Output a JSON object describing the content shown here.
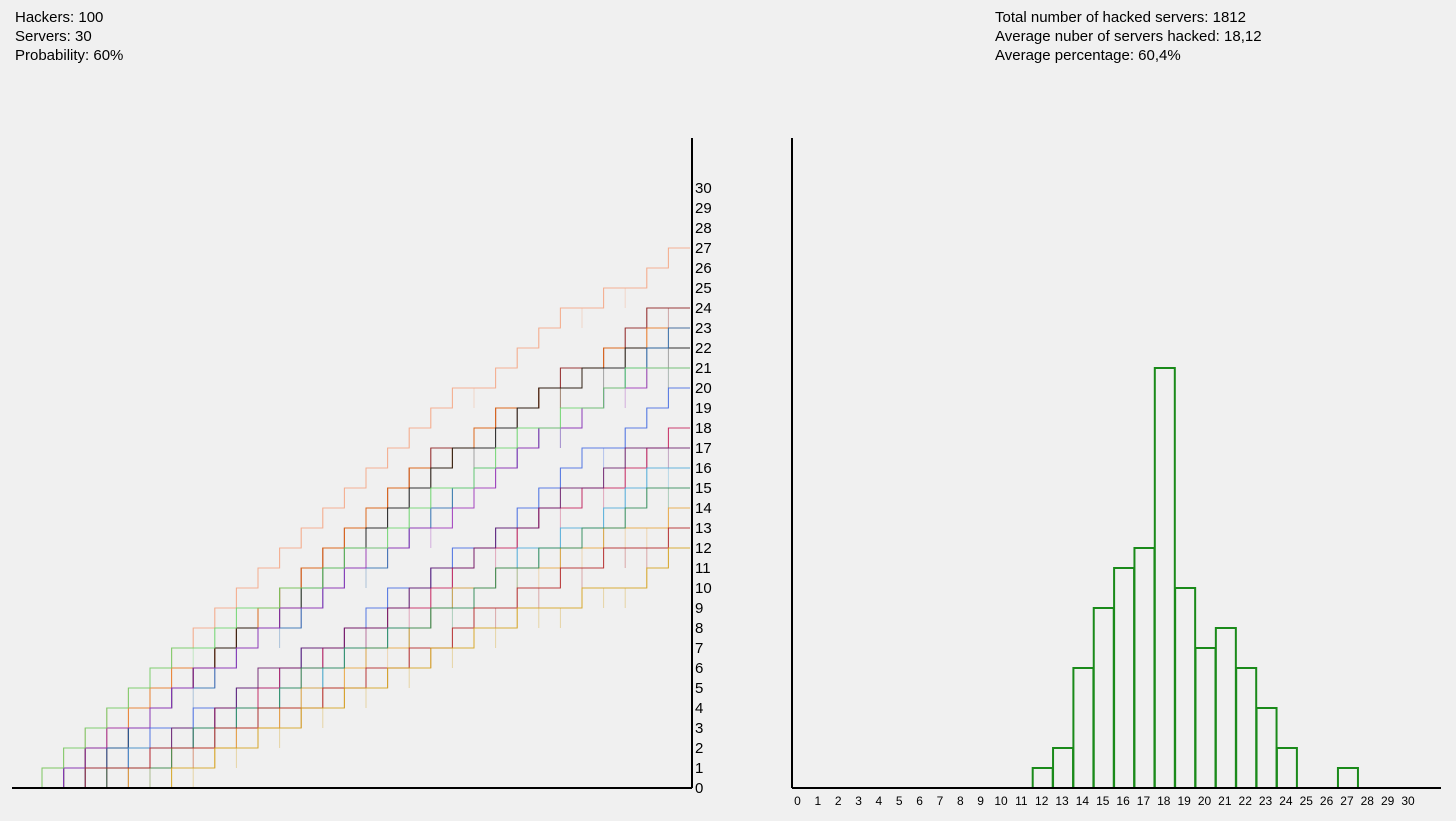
{
  "stats_left": {
    "hackers": "Hackers: 100",
    "servers": "Servers: 30",
    "probability": "Probability: 60%"
  },
  "stats_right": {
    "total": "Total number of hacked servers: 1812",
    "average_number": "Average nuber of servers hacked: 18,12",
    "average_percentage": "Average percentage: 60,4%"
  },
  "chart_data": [
    {
      "type": "line",
      "title": "",
      "xlabel": "",
      "ylabel": "",
      "x_range": [
        0,
        30
      ],
      "ylim": [
        0,
        30
      ],
      "y_ticks": [
        "0",
        "1",
        "2",
        "3",
        "4",
        "5",
        "6",
        "7",
        "8",
        "9",
        "10",
        "11",
        "12",
        "13",
        "14",
        "15",
        "16",
        "17",
        "18",
        "19",
        "20",
        "21",
        "22",
        "23",
        "24",
        "25",
        "26",
        "27",
        "28",
        "29",
        "30"
      ],
      "series": [
        {
          "color": "#f4a582",
          "values": [
            1,
            2,
            3,
            4,
            5,
            6,
            7,
            8,
            9,
            10,
            11,
            12,
            13,
            14,
            15,
            16,
            17,
            18,
            19,
            20,
            20,
            21,
            22,
            23,
            24,
            24,
            25,
            25,
            26,
            27
          ]
        },
        {
          "color": "#8b1a1a",
          "values": [
            0,
            1,
            1,
            2,
            3,
            4,
            5,
            6,
            7,
            8,
            9,
            10,
            11,
            12,
            13,
            14,
            15,
            16,
            17,
            17,
            18,
            19,
            19,
            20,
            21,
            21,
            22,
            23,
            24,
            24
          ]
        },
        {
          "color": "#e8731c",
          "values": [
            1,
            1,
            2,
            3,
            4,
            5,
            6,
            6,
            7,
            8,
            9,
            10,
            11,
            12,
            13,
            14,
            15,
            16,
            16,
            17,
            18,
            19,
            19,
            20,
            20,
            21,
            22,
            22,
            23,
            23
          ]
        },
        {
          "color": "#111111",
          "values": [
            0,
            1,
            2,
            2,
            3,
            4,
            5,
            6,
            7,
            8,
            8,
            9,
            10,
            11,
            12,
            13,
            14,
            15,
            16,
            17,
            17,
            18,
            19,
            20,
            20,
            21,
            21,
            22,
            22,
            22
          ]
        },
        {
          "color": "#2b6cb0",
          "values": [
            0,
            1,
            1,
            2,
            3,
            4,
            5,
            5,
            6,
            7,
            8,
            8,
            9,
            10,
            11,
            11,
            12,
            13,
            14,
            15,
            16,
            16,
            17,
            18,
            18,
            19,
            20,
            21,
            22,
            23
          ]
        },
        {
          "color": "#9b30b8",
          "values": [
            0,
            1,
            2,
            3,
            3,
            4,
            5,
            6,
            6,
            7,
            8,
            9,
            9,
            10,
            11,
            12,
            12,
            13,
            13,
            14,
            15,
            16,
            17,
            18,
            18,
            19,
            20,
            20,
            21,
            21
          ]
        },
        {
          "color": "#6ad46a",
          "values": [
            1,
            2,
            3,
            4,
            5,
            6,
            7,
            7,
            8,
            9,
            9,
            10,
            10,
            11,
            12,
            12,
            13,
            14,
            15,
            15,
            16,
            17,
            18,
            18,
            19,
            19,
            20,
            21,
            21,
            21
          ]
        },
        {
          "color": "#4169e1",
          "values": [
            0,
            0,
            1,
            1,
            2,
            3,
            3,
            4,
            4,
            5,
            5,
            6,
            7,
            7,
            8,
            9,
            10,
            10,
            11,
            12,
            12,
            13,
            14,
            15,
            16,
            17,
            17,
            18,
            19,
            20
          ]
        },
        {
          "color": "#c41e5a",
          "values": [
            0,
            0,
            0,
            1,
            1,
            2,
            2,
            3,
            4,
            4,
            5,
            6,
            6,
            7,
            8,
            8,
            9,
            9,
            10,
            11,
            12,
            12,
            13,
            14,
            14,
            15,
            15,
            16,
            17,
            18
          ]
        },
        {
          "color": "#6a1b6a",
          "values": [
            0,
            0,
            1,
            1,
            2,
            2,
            3,
            3,
            4,
            5,
            6,
            6,
            7,
            7,
            8,
            8,
            9,
            10,
            11,
            11,
            12,
            13,
            13,
            14,
            15,
            15,
            16,
            17,
            17,
            17
          ]
        },
        {
          "color": "#4aa8d8",
          "values": [
            0,
            0,
            1,
            1,
            2,
            2,
            2,
            3,
            3,
            4,
            4,
            5,
            5,
            6,
            7,
            7,
            8,
            8,
            9,
            10,
            10,
            11,
            12,
            12,
            13,
            13,
            14,
            15,
            16,
            16
          ]
        },
        {
          "color": "#e8a33c",
          "values": [
            0,
            0,
            0,
            0,
            1,
            1,
            2,
            2,
            2,
            3,
            3,
            4,
            5,
            5,
            6,
            7,
            7,
            8,
            9,
            10,
            10,
            11,
            11,
            11,
            12,
            12,
            13,
            13,
            13,
            14
          ]
        },
        {
          "color": "#2e8b57",
          "values": [
            0,
            0,
            0,
            1,
            1,
            1,
            2,
            3,
            3,
            4,
            4,
            5,
            6,
            6,
            7,
            7,
            8,
            8,
            9,
            9,
            10,
            11,
            11,
            12,
            12,
            13,
            13,
            14,
            15,
            15
          ]
        },
        {
          "color": "#b22222",
          "values": [
            0,
            0,
            1,
            1,
            1,
            2,
            2,
            2,
            3,
            3,
            4,
            4,
            4,
            5,
            5,
            6,
            6,
            7,
            7,
            8,
            9,
            9,
            10,
            10,
            11,
            11,
            12,
            12,
            12,
            13
          ]
        },
        {
          "color": "#d4a017",
          "values": [
            0,
            0,
            0,
            0,
            0,
            0,
            1,
            1,
            2,
            2,
            3,
            3,
            4,
            4,
            5,
            5,
            6,
            6,
            7,
            7,
            8,
            8,
            9,
            9,
            9,
            10,
            10,
            10,
            11,
            12
          ]
        }
      ]
    },
    {
      "type": "bar",
      "title": "",
      "xlabel": "",
      "ylabel": "",
      "categories": [
        "0",
        "1",
        "2",
        "3",
        "4",
        "5",
        "6",
        "7",
        "8",
        "9",
        "10",
        "11",
        "12",
        "13",
        "14",
        "15",
        "16",
        "17",
        "18",
        "19",
        "20",
        "21",
        "22",
        "23",
        "24",
        "25",
        "26",
        "27",
        "28",
        "29",
        "30"
      ],
      "values": [
        0,
        0,
        0,
        0,
        0,
        0,
        0,
        0,
        0,
        0,
        0,
        0,
        1,
        2,
        6,
        9,
        11,
        12,
        21,
        10,
        7,
        8,
        6,
        4,
        2,
        0,
        0,
        1,
        0,
        0,
        0
      ],
      "ylim": [
        0,
        32.5
      ],
      "bar_color": "#1a8a1a"
    }
  ]
}
